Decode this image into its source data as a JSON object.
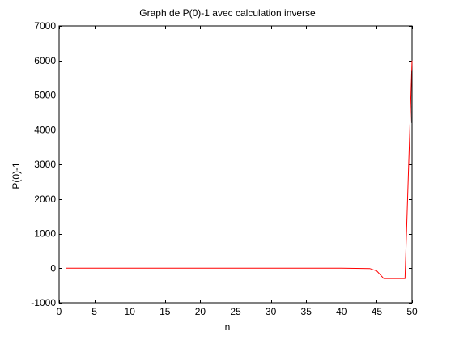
{
  "chart_data": {
    "type": "line",
    "title": "Graph de P(0)-1 avec calculation inverse",
    "xlabel": "n",
    "ylabel": "P(0)-1",
    "xlim": [
      0,
      50
    ],
    "ylim": [
      -1000,
      7000
    ],
    "xticks": [
      0,
      5,
      10,
      15,
      20,
      25,
      30,
      35,
      40,
      45,
      50
    ],
    "yticks": [
      -1000,
      0,
      1000,
      2000,
      3000,
      4000,
      5000,
      6000,
      7000
    ],
    "grid": false,
    "legend": "none",
    "series": [
      {
        "color": "#ff0000",
        "x": [
          1,
          5,
          10,
          15,
          20,
          25,
          30,
          35,
          40,
          44,
          45,
          46,
          47,
          48,
          49,
          50
        ],
        "y": [
          0,
          0,
          0,
          0,
          0,
          0,
          0,
          0,
          0,
          -10,
          -80,
          -300,
          -300,
          -300,
          -300,
          6000
        ]
      }
    ],
    "extra_segments": [
      {
        "color": "#000000",
        "x": [
          49.97,
          50
        ],
        "y": [
          4200,
          5700
        ]
      }
    ]
  }
}
